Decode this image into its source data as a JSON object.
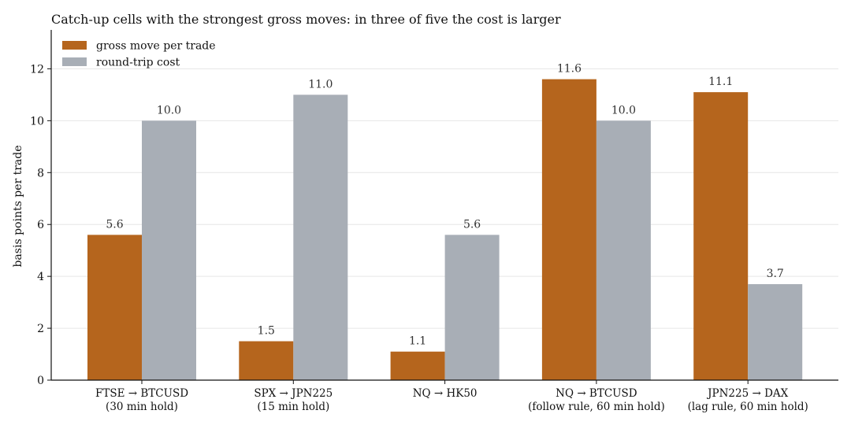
{
  "chart_data": {
    "type": "bar",
    "title": "Catch-up cells with the strongest gross moves: in three of five the cost is larger",
    "ylabel": "basis points per trade",
    "xlabel": "",
    "categories": [
      [
        "FTSE → BTCUSD",
        "(30 min hold)"
      ],
      [
        "SPX → JPN225",
        "(15 min hold)"
      ],
      [
        "NQ → HK50"
      ],
      [
        "NQ → BTCUSD",
        "(follow rule, 60 min hold)"
      ],
      [
        "JPN225 → DAX",
        "(lag rule, 60 min hold)"
      ]
    ],
    "series": [
      {
        "name": "gross move per trade",
        "color": "#b5651d",
        "values": [
          5.6,
          1.5,
          1.1,
          11.6,
          11.1
        ]
      },
      {
        "name": "round-trip cost",
        "color": "#a8aeb6",
        "values": [
          10.0,
          11.0,
          5.6,
          10.0,
          3.7
        ]
      }
    ],
    "ylim": [
      0,
      13.5
    ],
    "yticks": [
      0,
      2,
      4,
      6,
      8,
      10,
      12
    ],
    "grid": "horizontal",
    "legend": "top-left",
    "data_labels": true
  }
}
